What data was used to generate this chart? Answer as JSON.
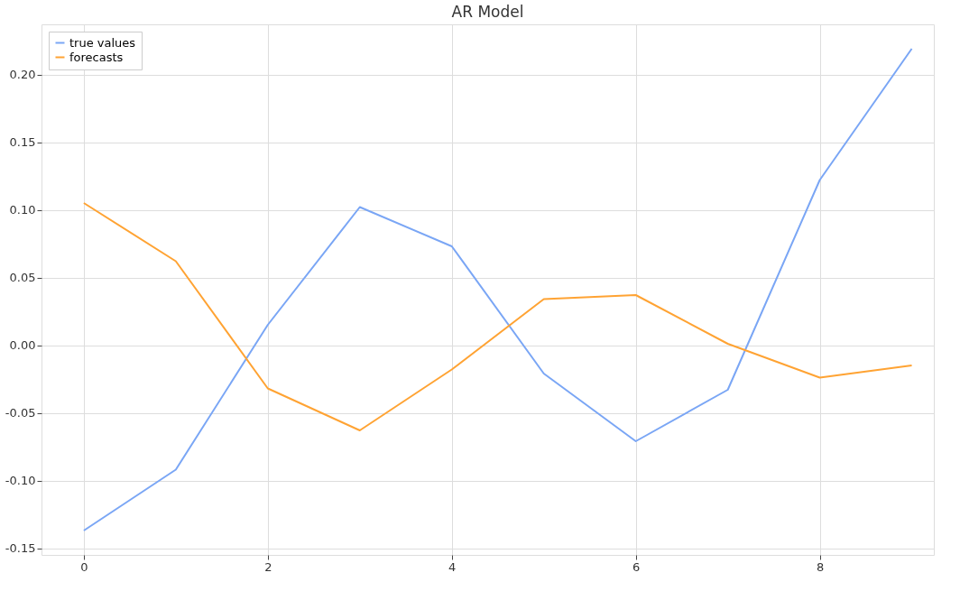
{
  "chart_data": {
    "type": "line",
    "title": "AR Model",
    "x": [
      0,
      1,
      2,
      3,
      4,
      5,
      6,
      7,
      8,
      9
    ],
    "series": [
      {
        "name": "true values",
        "color": "#7aa6f5",
        "values": [
          -0.137,
          -0.092,
          0.015,
          0.102,
          0.073,
          -0.021,
          -0.071,
          -0.033,
          0.122,
          0.219
        ]
      },
      {
        "name": "forecasts",
        "color": "#ffa333",
        "values": [
          0.105,
          0.062,
          -0.032,
          -0.063,
          -0.018,
          0.034,
          0.037,
          0.001,
          -0.024,
          -0.015
        ]
      }
    ],
    "xlim": [
      -0.46,
      9.24
    ],
    "ylim": [
      -0.155,
      0.237
    ],
    "xticks": [
      0,
      2,
      4,
      6,
      8
    ],
    "yticks": [
      {
        "value": -0.15,
        "label": "-0.15"
      },
      {
        "value": -0.1,
        "label": "-0.10"
      },
      {
        "value": -0.05,
        "label": "-0.05"
      },
      {
        "value": 0,
        "label": "0.00"
      },
      {
        "value": 0.05,
        "label": "0.05"
      },
      {
        "value": 0.1,
        "label": "0.10"
      },
      {
        "value": 0.15,
        "label": "0.15"
      },
      {
        "value": 0.2,
        "label": "0.20"
      }
    ],
    "grid": true,
    "legend": "top left",
    "line_style": "solid"
  }
}
